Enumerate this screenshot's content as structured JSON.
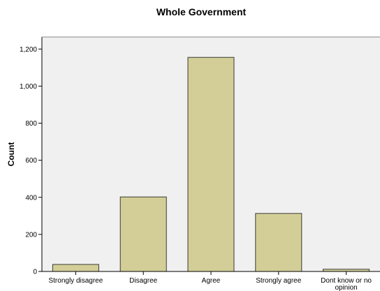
{
  "chart_data": {
    "type": "bar",
    "title": "Whole Government",
    "xlabel": "",
    "ylabel": "Count",
    "categories": [
      "Strongly disagree",
      "Disagree",
      "Agree",
      "Strongly agree",
      "Dont know or no opinion"
    ],
    "values": [
      38,
      402,
      1155,
      313,
      12
    ],
    "ylim": [
      0,
      1265
    ],
    "yticks": [
      0,
      200,
      400,
      600,
      800,
      1000,
      1200
    ],
    "ytick_labels": [
      "0",
      "200",
      "400",
      "600",
      "800",
      "1,000",
      "1,200"
    ],
    "grid": false,
    "legend": "none",
    "colors": {
      "bar_fill": "#d3ce98",
      "bar_stroke": "#3a3a30",
      "plot_background": "#f0f0f0",
      "axis": "#000000"
    }
  }
}
